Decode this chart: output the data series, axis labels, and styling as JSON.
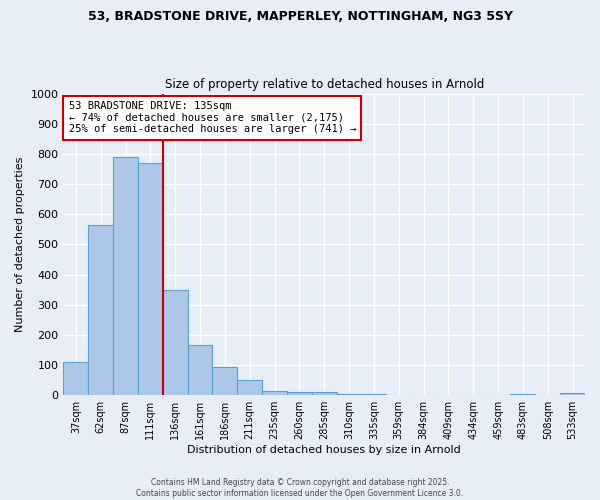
{
  "title_line1": "53, BRADSTONE DRIVE, MAPPERLEY, NOTTINGHAM, NG3 5SY",
  "title_line2": "Size of property relative to detached houses in Arnold",
  "xlabel": "Distribution of detached houses by size in Arnold",
  "ylabel": "Number of detached properties",
  "categories": [
    "37sqm",
    "62sqm",
    "87sqm",
    "111sqm",
    "136sqm",
    "161sqm",
    "186sqm",
    "211sqm",
    "235sqm",
    "260sqm",
    "285sqm",
    "310sqm",
    "335sqm",
    "359sqm",
    "384sqm",
    "409sqm",
    "434sqm",
    "459sqm",
    "483sqm",
    "508sqm",
    "533sqm"
  ],
  "values": [
    110,
    565,
    790,
    770,
    350,
    165,
    95,
    50,
    15,
    10,
    10,
    5,
    5,
    0,
    0,
    0,
    0,
    0,
    5,
    0,
    8
  ],
  "bar_color": "#aec6e8",
  "bar_edge_color": "#5a9fd4",
  "red_line_index": 3,
  "red_line_color": "#cc0000",
  "annotation_text": "53 BRADSTONE DRIVE: 135sqm\n← 74% of detached houses are smaller (2,175)\n25% of semi-detached houses are larger (741) →",
  "annotation_box_color": "#ffffff",
  "annotation_box_edge": "#cc0000",
  "ylim": [
    0,
    1000
  ],
  "yticks": [
    0,
    100,
    200,
    300,
    400,
    500,
    600,
    700,
    800,
    900,
    1000
  ],
  "background_color": "#e8eef8",
  "grid_color": "#ffffff",
  "footer_line1": "Contains HM Land Registry data © Crown copyright and database right 2025.",
  "footer_line2": "Contains public sector information licensed under the Open Government Licence 3.0."
}
